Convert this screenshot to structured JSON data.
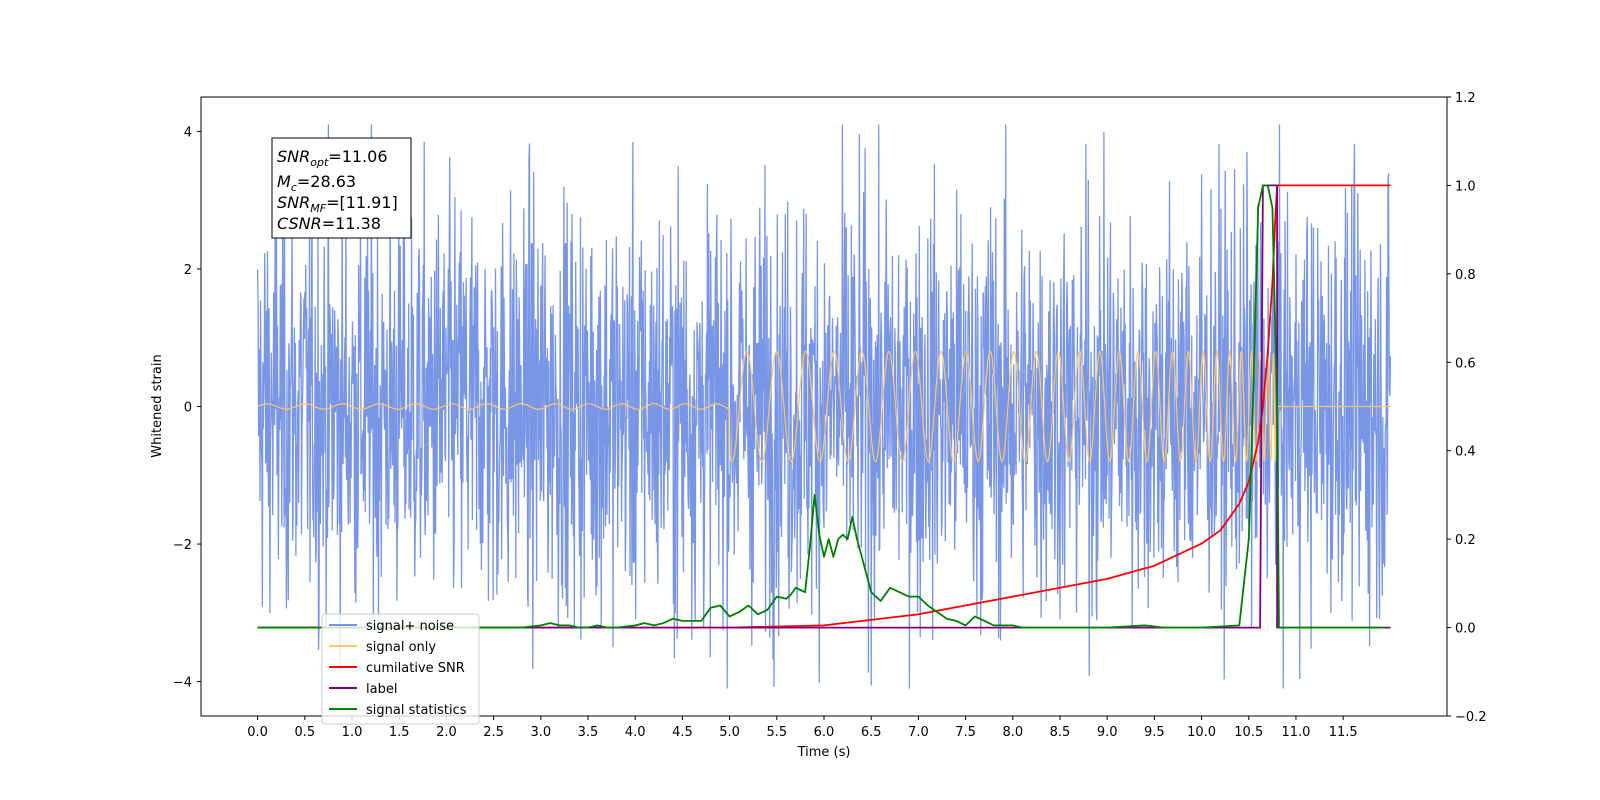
{
  "chart_data": {
    "type": "line",
    "xlabel": "Time (s)",
    "ylabel_left": "Whitened strain",
    "ylabel_right": "",
    "xlim": [
      -0.6,
      12.6
    ],
    "ylim_left": [
      -4.5,
      4.5
    ],
    "ylim_right": [
      -0.2,
      1.2
    ],
    "x_ticks": [
      "0.0",
      "0.5",
      "1.0",
      "1.5",
      "2.0",
      "2.5",
      "3.0",
      "3.5",
      "4.0",
      "4.5",
      "5.0",
      "5.5",
      "6.0",
      "6.5",
      "7.0",
      "7.5",
      "8.0",
      "8.5",
      "9.0",
      "9.5",
      "10.0",
      "10.5",
      "11.0",
      "11.5"
    ],
    "y_ticks_left": [
      "−4",
      "−2",
      "0",
      "2",
      "4"
    ],
    "y_ticks_right": [
      "−0.2",
      "0.0",
      "0.2",
      "0.4",
      "0.6",
      "0.8",
      "1.0",
      "1.2"
    ],
    "annotation": {
      "line1": {
        "sym": "SNR",
        "sub": "opt",
        "val": "=11.06"
      },
      "line2": {
        "sym": "M",
        "sub": "c",
        "val": "=28.63"
      },
      "line3": {
        "sym": "SNR",
        "sub": "MF",
        "val": "=[11.91]"
      },
      "line4": {
        "sym": "CSNR",
        "sub": "",
        "val": "=11.38"
      }
    },
    "legend": {
      "placement": "lower-left",
      "entries": [
        {
          "label": "signal+ noise",
          "color": "#7895e6"
        },
        {
          "label": "signal only",
          "color": "#ffc56b"
        },
        {
          "label": "cumilative SNR",
          "color": "#ff0000"
        },
        {
          "label": "label",
          "color": "#800080"
        },
        {
          "label": "signal statistics",
          "color": "#008000"
        }
      ]
    },
    "series": [
      {
        "name": "signal+ noise",
        "axis": "left",
        "color": "#7895e6",
        "style": "noise-band",
        "x_range": [
          0.0,
          12.0
        ],
        "approx_amplitude": 1.5,
        "min_observed": -4.1,
        "max_observed": 4.1
      },
      {
        "name": "signal only",
        "axis": "left",
        "color": "#ffc56b",
        "style": "chirp",
        "x_range": [
          0.0,
          12.0
        ],
        "merger_time": 10.8,
        "peak_amplitude": 0.8
      },
      {
        "name": "cumilative SNR",
        "axis": "right",
        "color": "#ff0000",
        "x": [
          0.0,
          3.0,
          5.0,
          6.0,
          7.0,
          8.0,
          9.0,
          9.5,
          10.0,
          10.2,
          10.4,
          10.5,
          10.6,
          10.65,
          10.7,
          10.75,
          10.78,
          10.8,
          12.0
        ],
        "y": [
          0.0,
          0.0,
          0.0,
          0.005,
          0.03,
          0.07,
          0.11,
          0.14,
          0.19,
          0.22,
          0.28,
          0.33,
          0.42,
          0.5,
          0.62,
          0.78,
          0.92,
          1.0,
          1.0
        ]
      },
      {
        "name": "label",
        "axis": "right",
        "color": "#800080",
        "x": [
          0.0,
          10.62,
          10.65,
          10.8,
          10.8,
          12.0
        ],
        "y": [
          0.0,
          0.0,
          1.0,
          1.0,
          0.0,
          0.0
        ]
      },
      {
        "name": "signal statistics",
        "axis": "right",
        "color": "#008000",
        "x": [
          0.0,
          2.8,
          3.0,
          3.1,
          3.2,
          3.3,
          3.4,
          3.5,
          3.6,
          3.7,
          3.8,
          4.0,
          4.1,
          4.2,
          4.3,
          4.4,
          4.5,
          4.6,
          4.7,
          4.8,
          4.9,
          5.0,
          5.1,
          5.2,
          5.3,
          5.4,
          5.5,
          5.6,
          5.65,
          5.7,
          5.75,
          5.8,
          5.85,
          5.9,
          5.95,
          6.0,
          6.05,
          6.1,
          6.15,
          6.2,
          6.25,
          6.3,
          6.35,
          6.4,
          6.45,
          6.5,
          6.6,
          6.7,
          6.8,
          6.85,
          6.9,
          7.0,
          7.1,
          7.2,
          7.3,
          7.4,
          7.5,
          7.6,
          7.7,
          7.8,
          7.9,
          8.0,
          8.1,
          8.2,
          8.4,
          8.6,
          9.0,
          9.4,
          9.6,
          9.8,
          10.0,
          10.4,
          10.5,
          10.55,
          10.6,
          10.65,
          10.7,
          10.75,
          10.8,
          10.82,
          11.0,
          11.5,
          11.95
        ],
        "y": [
          0.0,
          0.0,
          0.005,
          0.01,
          0.005,
          0.005,
          0.0,
          0.0,
          0.005,
          0.0,
          0.0,
          0.005,
          0.01,
          0.005,
          0.01,
          0.02,
          0.015,
          0.015,
          0.015,
          0.045,
          0.05,
          0.025,
          0.035,
          0.05,
          0.03,
          0.04,
          0.07,
          0.065,
          0.075,
          0.09,
          0.085,
          0.08,
          0.18,
          0.3,
          0.21,
          0.16,
          0.2,
          0.16,
          0.2,
          0.21,
          0.2,
          0.25,
          0.2,
          0.16,
          0.12,
          0.08,
          0.06,
          0.09,
          0.08,
          0.075,
          0.07,
          0.07,
          0.05,
          0.035,
          0.02,
          0.015,
          0.005,
          0.025,
          0.015,
          0.005,
          0.005,
          0.005,
          0.0,
          0.0,
          0.0,
          0.0,
          0.0,
          0.005,
          0.0,
          0.0,
          0.0,
          0.005,
          0.2,
          0.55,
          0.95,
          1.0,
          1.0,
          0.95,
          0.5,
          0.0,
          0.0,
          0.0,
          0.0
        ]
      }
    ]
  }
}
